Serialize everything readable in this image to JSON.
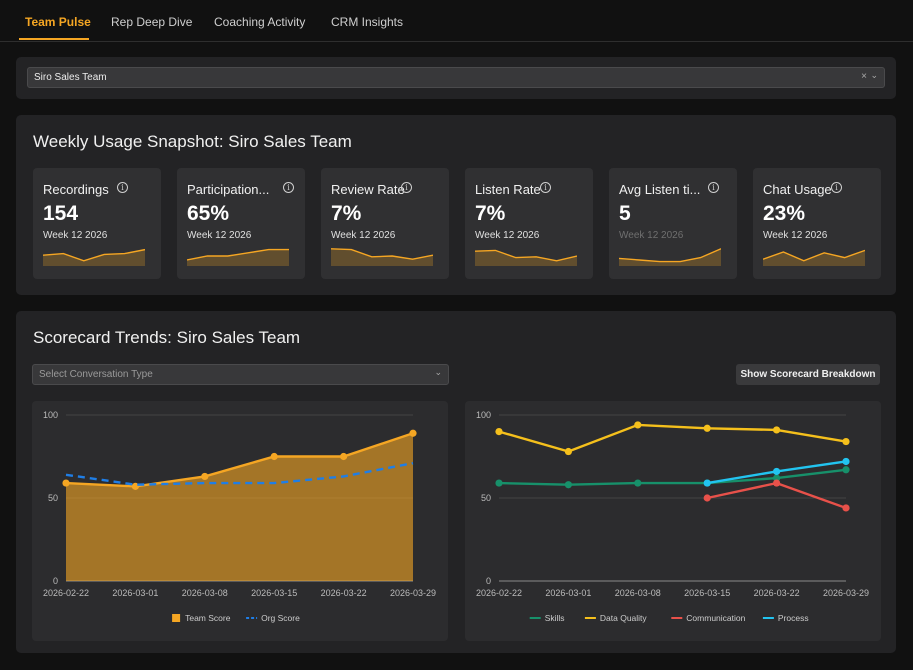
{
  "tabs": [
    {
      "label": "Team Pulse",
      "active": true
    },
    {
      "label": "Rep Deep Dive",
      "active": false
    },
    {
      "label": "Coaching Activity",
      "active": false
    },
    {
      "label": "CRM Insights",
      "active": false
    }
  ],
  "team_select": {
    "value": "Siro Sales Team",
    "clear_glyph": "×",
    "chevron_glyph": "⌄"
  },
  "snapshot": {
    "title": "Weekly Usage Snapshot: Siro Sales Team",
    "cards": [
      {
        "title": "Recordings",
        "value": "154",
        "week": "Week 12 2026",
        "week_dim": false,
        "spark": [
          0.55,
          0.65,
          0.2,
          0.6,
          0.65,
          0.9
        ]
      },
      {
        "title": "Participation...",
        "value": "65%",
        "week": "Week 12 2026",
        "week_dim": false,
        "spark": [
          0.25,
          0.5,
          0.5,
          0.7,
          0.9,
          0.9
        ]
      },
      {
        "title": "Review Rate",
        "value": "7%",
        "week": "Week 12 2026",
        "week_dim": false,
        "spark": [
          0.95,
          0.9,
          0.45,
          0.5,
          0.3,
          0.55
        ]
      },
      {
        "title": "Listen Rate",
        "value": "7%",
        "week": "Week 12 2026",
        "week_dim": false,
        "spark": [
          0.8,
          0.85,
          0.4,
          0.45,
          0.2,
          0.5
        ]
      },
      {
        "title": "Avg Listen ti...",
        "value": "5",
        "week": "Week 12 2026",
        "week_dim": true,
        "spark": [
          0.35,
          0.25,
          0.15,
          0.15,
          0.4,
          0.95
        ]
      },
      {
        "title": "Chat Usage",
        "value": "23%",
        "week": "Week 12 2026",
        "week_dim": false,
        "spark": [
          0.3,
          0.75,
          0.2,
          0.7,
          0.4,
          0.85
        ]
      }
    ]
  },
  "scorecard": {
    "title": "Scorecard Trends: Siro Sales Team",
    "conversation_placeholder": "Select Conversation Type",
    "breakdown_button": "Show Scorecard Breakdown"
  },
  "chart_data": [
    {
      "type": "area",
      "title": "",
      "xlabel": "",
      "ylabel": "",
      "ylim": [
        0,
        100
      ],
      "yticks": [
        "0",
        "50",
        "100"
      ],
      "categories": [
        "2026-02-22",
        "2026-03-01",
        "2026-03-08",
        "2026-03-15",
        "2026-03-22",
        "2026-03-29"
      ],
      "series": [
        {
          "name": "Team Score",
          "values": [
            59,
            57,
            63,
            75,
            75,
            89
          ],
          "color": "#f5a623",
          "style": "area"
        },
        {
          "name": "Org Score",
          "values": [
            64,
            58,
            59,
            59,
            63,
            71
          ],
          "color": "#1f7ee6",
          "style": "dashed"
        }
      ],
      "legend": "bottom"
    },
    {
      "type": "line",
      "title": "",
      "xlabel": "",
      "ylabel": "",
      "ylim": [
        0,
        100
      ],
      "yticks": [
        "0",
        "50",
        "100"
      ],
      "categories": [
        "2026-02-22",
        "2026-03-01",
        "2026-03-08",
        "2026-03-15",
        "2026-03-22",
        "2026-03-29"
      ],
      "series": [
        {
          "name": "Skills",
          "values": [
            59,
            58,
            59,
            59,
            62,
            67
          ],
          "color": "#17906a"
        },
        {
          "name": "Data Quality",
          "values": [
            90,
            78,
            94,
            92,
            91,
            84
          ],
          "color": "#f5c01c"
        },
        {
          "name": "Communication",
          "values": [
            null,
            null,
            null,
            50,
            59,
            44
          ],
          "color": "#e8514a"
        },
        {
          "name": "Process",
          "values": [
            null,
            null,
            null,
            59,
            66,
            72
          ],
          "color": "#22c4f0"
        }
      ],
      "legend": "bottom"
    }
  ]
}
